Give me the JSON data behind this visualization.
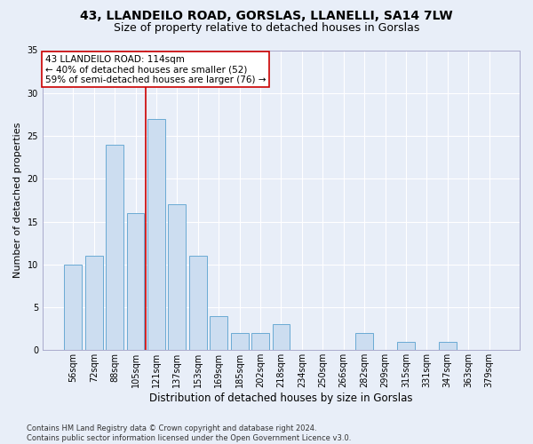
{
  "title1": "43, LLANDEILO ROAD, GORSLAS, LLANELLI, SA14 7LW",
  "title2": "Size of property relative to detached houses in Gorslas",
  "xlabel": "Distribution of detached houses by size in Gorslas",
  "ylabel": "Number of detached properties",
  "categories": [
    "56sqm",
    "72sqm",
    "88sqm",
    "105sqm",
    "121sqm",
    "137sqm",
    "153sqm",
    "169sqm",
    "185sqm",
    "202sqm",
    "218sqm",
    "234sqm",
    "250sqm",
    "266sqm",
    "282sqm",
    "299sqm",
    "315sqm",
    "331sqm",
    "347sqm",
    "363sqm",
    "379sqm"
  ],
  "values": [
    10,
    11,
    24,
    16,
    27,
    17,
    11,
    4,
    2,
    2,
    3,
    0,
    0,
    0,
    2,
    0,
    1,
    0,
    1,
    0,
    0
  ],
  "bar_color": "#ccddf0",
  "bar_edge_color": "#6aaad4",
  "vline_x": 3.5,
  "annotation_box_text_line1": "43 LLANDEILO ROAD: 114sqm",
  "annotation_box_text_line2": "← 40% of detached houses are smaller (52)",
  "annotation_box_text_line3": "59% of semi-detached houses are larger (76) →",
  "annotation_box_color": "white",
  "annotation_box_edge_color": "#cc0000",
  "vline_color": "#cc0000",
  "background_color": "#e8eef8",
  "grid_color": "white",
  "footnote": "Contains HM Land Registry data © Crown copyright and database right 2024.\nContains public sector information licensed under the Open Government Licence v3.0.",
  "ylim": [
    0,
    35
  ],
  "yticks": [
    0,
    5,
    10,
    15,
    20,
    25,
    30,
    35
  ],
  "title1_fontsize": 10,
  "title2_fontsize": 9,
  "xlabel_fontsize": 8.5,
  "ylabel_fontsize": 8,
  "tick_fontsize": 7,
  "annot_fontsize": 7.5,
  "footnote_fontsize": 6
}
